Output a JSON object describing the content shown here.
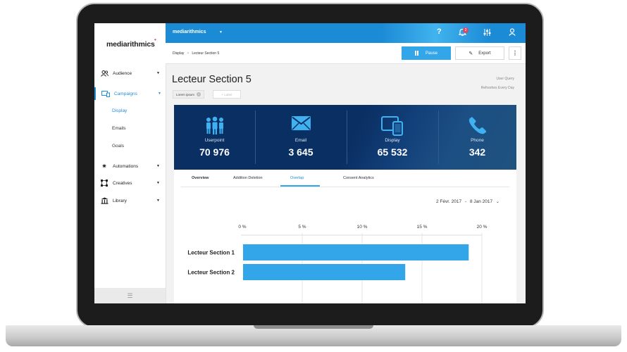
{
  "sidebar": {
    "logo": "mediarithmics",
    "items": [
      {
        "label": "Audience",
        "icon": "users-icon"
      },
      {
        "label": "Campaigns",
        "icon": "devices-icon"
      },
      {
        "label": "Automations",
        "icon": "gears-icon"
      },
      {
        "label": "Creatives",
        "icon": "nodes-icon"
      },
      {
        "label": "Library",
        "icon": "library-icon"
      }
    ],
    "campaign_subitems": [
      "Display",
      "Emails",
      "Goals"
    ]
  },
  "topbar": {
    "org_name": "mediarithmics",
    "notification_count": "2",
    "icons": [
      "help-icon",
      "bell-icon",
      "settings-sliders-icon",
      "user-icon"
    ]
  },
  "breadcrumb": {
    "items": [
      "Display",
      "Lecteur Section 5"
    ]
  },
  "actions": {
    "pause_label": "Pause",
    "export_label": "Export"
  },
  "page": {
    "title": "Lecteur Section 5",
    "tag": "Lorem ipsum",
    "add_label": "+ Label",
    "meta_line1": "User Query",
    "meta_line2": "Refreshes Every Day"
  },
  "stats": [
    {
      "label": "Userpoint",
      "value": "70 976",
      "icon": "people-icon"
    },
    {
      "label": "Email",
      "value": "3 645",
      "icon": "envelope-icon"
    },
    {
      "label": "Display",
      "value": "65 532",
      "icon": "devices-icon"
    },
    {
      "label": "Phone",
      "value": "342",
      "icon": "phone-icon"
    }
  ],
  "tabs": [
    "Overview",
    "Addition Deletion",
    "Overlap",
    "Consent Analytics"
  ],
  "active_tab": "Overlap",
  "date_range": {
    "from": "2 Févr. 2017",
    "separator": "-",
    "to": "8 Jan 2017"
  },
  "colors": {
    "accent": "#1f8ed6",
    "bar": "#33a6e9",
    "banner": "#0a2f63"
  },
  "chart_data": {
    "type": "bar",
    "orientation": "horizontal",
    "categories": [
      "Lecteur Section 1",
      "Lecteur Section 2"
    ],
    "values": [
      18.9,
      13.6
    ],
    "xlim": [
      0,
      20
    ],
    "x_ticks": [
      "0 %",
      "5 %",
      "10 %",
      "15 %",
      "20 %"
    ],
    "x_tick_values": [
      0,
      5,
      10,
      15,
      20
    ],
    "grid": true,
    "title": "",
    "xlabel": "",
    "ylabel": ""
  }
}
